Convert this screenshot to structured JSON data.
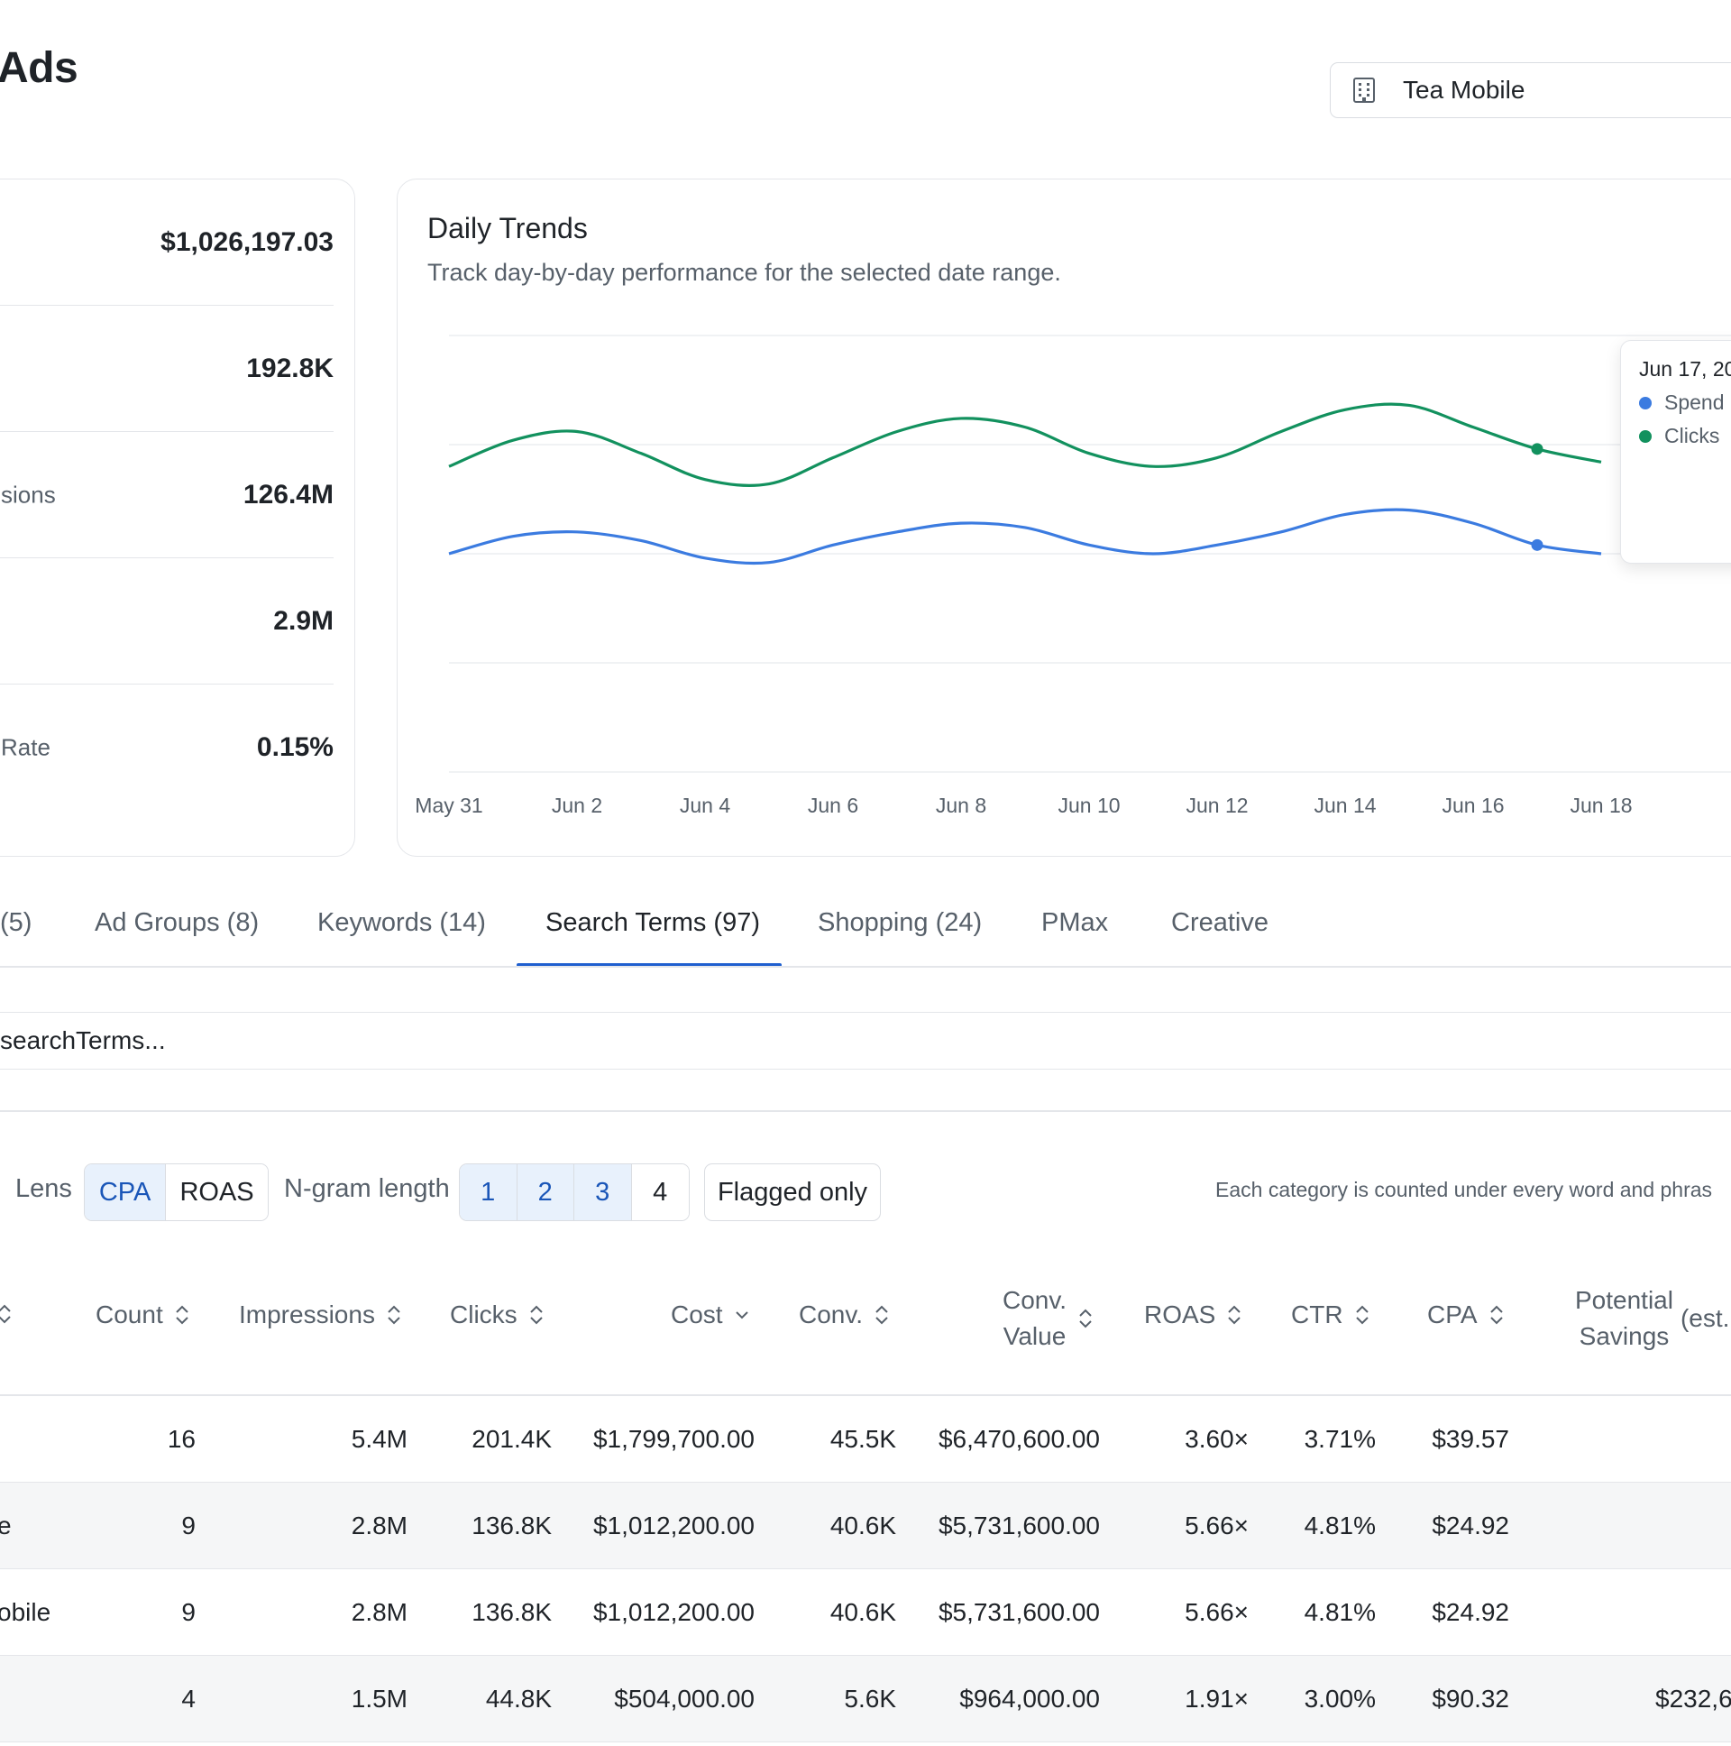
{
  "header": {
    "title": "Ads"
  },
  "account": {
    "name": "Tea Mobile",
    "icon": "building-icon"
  },
  "metrics": [
    {
      "label": "",
      "value": "$1,026,197.03"
    },
    {
      "label": "",
      "value": "192.8K"
    },
    {
      "label": "sions",
      "value": "126.4M"
    },
    {
      "label": "",
      "value": "2.9M"
    },
    {
      "label": "Rate",
      "value": "0.15%"
    }
  ],
  "trends": {
    "title": "Daily Trends",
    "subtitle": "Track day-by-day performance for the selected date range.",
    "tooltip": {
      "date": "Jun 17, 20",
      "items": [
        {
          "name": "Spend",
          "color": "#3b7be0"
        },
        {
          "name": "Clicks",
          "color": "#12915e"
        }
      ]
    }
  },
  "chart_data": {
    "type": "line",
    "x": [
      "May 31",
      "Jun 1",
      "Jun 2",
      "Jun 3",
      "Jun 4",
      "Jun 5",
      "Jun 6",
      "Jun 7",
      "Jun 8",
      "Jun 9",
      "Jun 10",
      "Jun 11",
      "Jun 12",
      "Jun 13",
      "Jun 14",
      "Jun 15",
      "Jun 16",
      "Jun 17",
      "Jun 18"
    ],
    "tick_labels": [
      "May 31",
      "Jun 2",
      "Jun 4",
      "Jun 6",
      "Jun 8",
      "Jun 10",
      "Jun 12",
      "Jun 14",
      "Jun 16",
      "Jun 18"
    ],
    "series": [
      {
        "name": "Clicks",
        "color": "#12915e",
        "values": [
          70,
          76,
          78,
          73,
          67,
          66,
          72,
          78,
          81,
          79,
          73,
          70,
          72,
          78,
          83,
          84,
          79,
          74,
          71
        ]
      },
      {
        "name": "Spend",
        "color": "#3b7be0",
        "values": [
          50,
          54,
          55,
          53,
          49,
          48,
          52,
          55,
          57,
          56,
          52,
          50,
          52,
          55,
          59,
          60,
          57,
          52,
          50
        ]
      }
    ],
    "ylim": [
      0,
      100
    ],
    "grid": true
  },
  "tabs": [
    {
      "label": "(5)",
      "active": false
    },
    {
      "label": "Ad Groups (8)",
      "active": false
    },
    {
      "label": "Keywords (14)",
      "active": false
    },
    {
      "label": "Search Terms (97)",
      "active": true
    },
    {
      "label": "Shopping (24)",
      "active": false
    },
    {
      "label": "PMax",
      "active": false
    },
    {
      "label": "Creative",
      "active": false
    }
  ],
  "search": {
    "placeholder": "searchTerms..."
  },
  "toolbar": {
    "lens_label": "Lens",
    "lens_options": [
      {
        "label": "CPA",
        "selected": true
      },
      {
        "label": "ROAS",
        "selected": false
      }
    ],
    "ngram_label": "N-gram length",
    "ngram_options": [
      {
        "label": "1",
        "selected": true
      },
      {
        "label": "2",
        "selected": true
      },
      {
        "label": "3",
        "selected": true
      },
      {
        "label": "4",
        "selected": false
      }
    ],
    "flagged_label": "Flagged only",
    "hint": "Each category is counted under every word and phras"
  },
  "table": {
    "columns": {
      "count": "Count",
      "impressions": "Impressions",
      "clicks": "Clicks",
      "cost": "Cost",
      "conv": "Conv.",
      "conv_value_1": "Conv.",
      "conv_value_2": "Value",
      "roas": "ROAS",
      "ctr": "CTR",
      "cpa": "CPA",
      "savings_1": "Potential",
      "savings_2": "Savings",
      "savings_3": "(est."
    },
    "rows": [
      {
        "term": "",
        "count": "16",
        "impressions": "5.4M",
        "clicks": "201.4K",
        "cost": "$1,799,700.00",
        "conv": "45.5K",
        "conv_value": "$6,470,600.00",
        "roas": "3.60×",
        "ctr": "3.71%",
        "cpa": "$39.57",
        "savings": ""
      },
      {
        "term": "e",
        "count": "9",
        "impressions": "2.8M",
        "clicks": "136.8K",
        "cost": "$1,012,200.00",
        "conv": "40.6K",
        "conv_value": "$5,731,600.00",
        "roas": "5.66×",
        "ctr": "4.81%",
        "cpa": "$24.92",
        "savings": ""
      },
      {
        "term": "obile",
        "count": "9",
        "impressions": "2.8M",
        "clicks": "136.8K",
        "cost": "$1,012,200.00",
        "conv": "40.6K",
        "conv_value": "$5,731,600.00",
        "roas": "5.66×",
        "ctr": "4.81%",
        "cpa": "$24.92",
        "savings": ""
      },
      {
        "term": "",
        "count": "4",
        "impressions": "1.5M",
        "clicks": "44.8K",
        "cost": "$504,000.00",
        "conv": "5.6K",
        "conv_value": "$964,000.00",
        "roas": "1.91×",
        "ctr": "3.00%",
        "cpa": "$90.32",
        "savings": "$232,6"
      }
    ]
  }
}
